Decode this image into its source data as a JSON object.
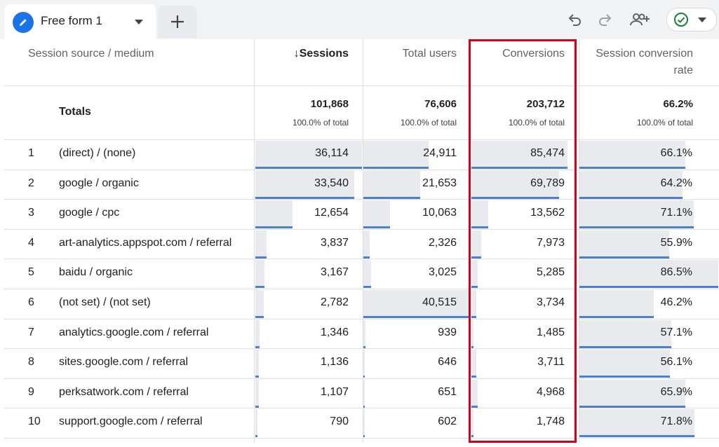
{
  "tab": {
    "label": "Free form 1",
    "add_label": "+"
  },
  "toolbar": {
    "icons": [
      "undo-icon",
      "redo-icon",
      "share-users-icon",
      "check-circle-icon"
    ]
  },
  "headers": {
    "dimension": "Session source / medium",
    "sessions": "↓Sessions",
    "total_users": "Total users",
    "conversions": "Conversions",
    "conv_rate_line1": "Session conversion",
    "conv_rate_line2": "rate"
  },
  "totals": {
    "label": "Totals",
    "sessions": "101,868",
    "total_users": "76,606",
    "conversions": "203,712",
    "conv_rate": "66.2%",
    "pct_label": "100.0% of total"
  },
  "rows": [
    {
      "rank": "1",
      "source": "(direct) / (none)",
      "sessions": "36,114",
      "users": "24,911",
      "conversions": "85,474",
      "rate": "66.1%",
      "f": [
        0.998,
        0.615,
        0.9,
        0.764
      ]
    },
    {
      "rank": "2",
      "source": "google / organic",
      "sessions": "33,540",
      "users": "21,653",
      "conversions": "69,789",
      "rate": "64.2%",
      "f": [
        0.93,
        0.53,
        0.82,
        0.742
      ]
    },
    {
      "rank": "3",
      "source": "google / cpc",
      "sessions": "12,654",
      "users": "10,063",
      "conversions": "13,562",
      "rate": "71.1%",
      "f": [
        0.35,
        0.248,
        0.16,
        0.822
      ]
    },
    {
      "rank": "4",
      "source": "art-analytics.appspot.com / referral",
      "sessions": "3,837",
      "users": "2,326",
      "conversions": "7,973",
      "rate": "55.9%",
      "f": [
        0.106,
        0.057,
        0.093,
        0.646
      ]
    },
    {
      "rank": "5",
      "source": "baidu / organic",
      "sessions": "3,167",
      "users": "3,025",
      "conversions": "5,285",
      "rate": "86.5%",
      "f": [
        0.088,
        0.075,
        0.062,
        1.0
      ]
    },
    {
      "rank": "6",
      "source": "(not set) / (not set)",
      "sessions": "2,782",
      "users": "40,515",
      "conversions": "3,734",
      "rate": "46.2%",
      "f": [
        0.077,
        1.0,
        0.044,
        0.534
      ]
    },
    {
      "rank": "7",
      "source": "analytics.google.com / referral",
      "sessions": "1,346",
      "users": "939",
      "conversions": "1,485",
      "rate": "57.1%",
      "f": [
        0.037,
        0.023,
        0.017,
        0.66
      ]
    },
    {
      "rank": "8",
      "source": "sites.google.com / referral",
      "sessions": "1,136",
      "users": "646",
      "conversions": "3,711",
      "rate": "56.1%",
      "f": [
        0.031,
        0.016,
        0.043,
        0.649
      ]
    },
    {
      "rank": "9",
      "source": "perksatwork.com / referral",
      "sessions": "1,107",
      "users": "651",
      "conversions": "4,968",
      "rate": "65.9%",
      "f": [
        0.031,
        0.016,
        0.058,
        0.762
      ]
    },
    {
      "rank": "10",
      "source": "support.google.com / referral",
      "sessions": "790",
      "users": "602",
      "conversions": "1,748",
      "rate": "71.8%",
      "f": [
        0.022,
        0.015,
        0.02,
        0.83
      ]
    }
  ]
}
